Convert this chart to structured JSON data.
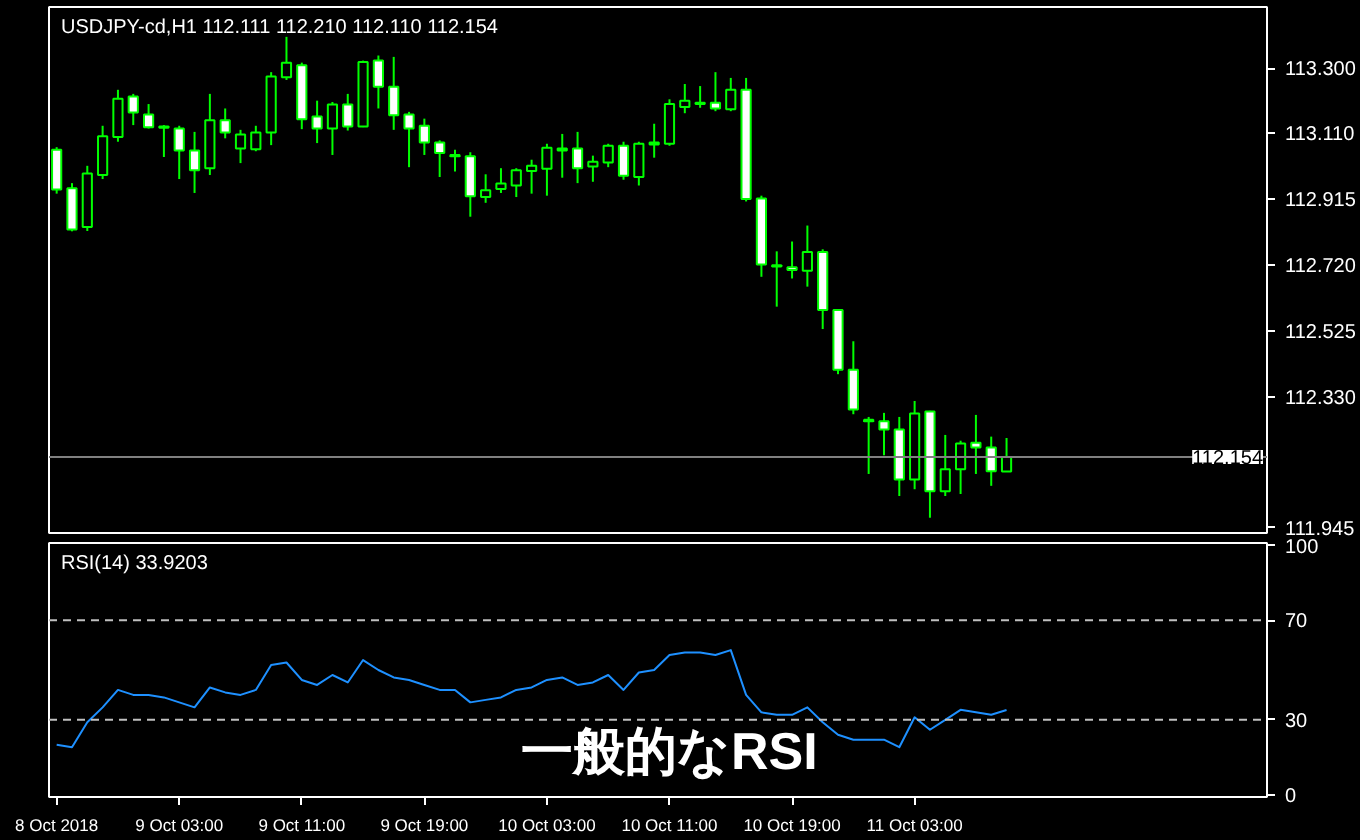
{
  "chart_data": [
    {
      "type": "candlestick",
      "title": "USDJPY-cd,H1  112.111 112.210 112.110 112.154",
      "x": [
        "2018-10-08T19:00",
        "2018-10-08T20:00",
        "2018-10-08T21:00",
        "2018-10-08T22:00",
        "2018-10-08T23:00",
        "2018-10-09T00:00",
        "2018-10-09T01:00",
        "2018-10-09T02:00",
        "2018-10-09T03:00",
        "2018-10-09T04:00",
        "2018-10-09T05:00",
        "2018-10-09T06:00",
        "2018-10-09T07:00",
        "2018-10-09T08:00",
        "2018-10-09T09:00",
        "2018-10-09T10:00",
        "2018-10-09T11:00",
        "2018-10-09T12:00",
        "2018-10-09T13:00",
        "2018-10-09T14:00",
        "2018-10-09T15:00",
        "2018-10-09T16:00",
        "2018-10-09T17:00",
        "2018-10-09T18:00",
        "2018-10-09T19:00",
        "2018-10-09T20:00",
        "2018-10-09T21:00",
        "2018-10-09T22:00",
        "2018-10-09T23:00",
        "2018-10-10T00:00",
        "2018-10-10T01:00",
        "2018-10-10T02:00",
        "2018-10-10T03:00",
        "2018-10-10T04:00",
        "2018-10-10T05:00",
        "2018-10-10T06:00",
        "2018-10-10T07:00",
        "2018-10-10T08:00",
        "2018-10-10T09:00",
        "2018-10-10T10:00",
        "2018-10-10T11:00",
        "2018-10-10T12:00",
        "2018-10-10T13:00",
        "2018-10-10T14:00",
        "2018-10-10T15:00",
        "2018-10-10T16:00",
        "2018-10-10T17:00",
        "2018-10-10T18:00",
        "2018-10-10T19:00",
        "2018-10-10T20:00",
        "2018-10-10T21:00",
        "2018-10-10T22:00",
        "2018-10-10T23:00",
        "2018-10-11T00:00",
        "2018-10-11T01:00",
        "2018-10-11T02:00",
        "2018-10-11T03:00",
        "2018-10-11T04:00",
        "2018-10-11T05:00",
        "2018-10-11T06:00",
        "2018-10-11T07:00",
        "2018-10-11T08:00",
        "2018-10-11T09:00"
      ],
      "ohlc": [
        [
          113.059,
          113.067,
          112.93,
          112.942
        ],
        [
          112.946,
          112.961,
          112.819,
          112.824
        ],
        [
          112.832,
          113.012,
          112.82,
          112.989
        ],
        [
          112.985,
          113.13,
          112.973,
          113.099
        ],
        [
          113.097,
          113.236,
          113.083,
          113.21
        ],
        [
          113.216,
          113.224,
          113.132,
          113.169
        ],
        [
          113.163,
          113.194,
          113.122,
          113.126
        ],
        [
          113.128,
          113.132,
          113.038,
          113.124
        ],
        [
          113.122,
          113.13,
          112.973,
          113.057
        ],
        [
          113.057,
          113.112,
          112.932,
          112.999
        ],
        [
          113.005,
          113.224,
          112.985,
          113.146
        ],
        [
          113.146,
          113.181,
          113.093,
          113.11
        ],
        [
          113.063,
          113.118,
          113.02,
          113.104
        ],
        [
          113.061,
          113.13,
          113.055,
          113.11
        ],
        [
          113.11,
          113.288,
          113.073,
          113.275
        ],
        [
          113.273,
          113.392,
          113.265,
          113.316
        ],
        [
          113.308,
          113.316,
          113.12,
          113.149
        ],
        [
          113.157,
          113.204,
          113.079,
          113.122
        ],
        [
          113.122,
          113.2,
          113.044,
          113.193
        ],
        [
          113.193,
          113.224,
          113.116,
          113.128
        ],
        [
          113.128,
          113.322,
          113.126,
          113.318
        ],
        [
          113.322,
          113.337,
          113.181,
          113.245
        ],
        [
          113.245,
          113.333,
          113.118,
          113.161
        ],
        [
          113.163,
          113.171,
          113.008,
          113.122
        ],
        [
          113.13,
          113.151,
          113.044,
          113.081
        ],
        [
          113.081,
          113.087,
          112.979,
          113.05
        ],
        [
          113.044,
          113.059,
          112.995,
          113.04
        ],
        [
          113.04,
          113.052,
          112.862,
          112.922
        ],
        [
          112.92,
          112.987,
          112.903,
          112.94
        ],
        [
          112.944,
          113.005,
          112.932,
          112.96
        ],
        [
          112.954,
          113.005,
          112.92,
          112.999
        ],
        [
          112.997,
          113.03,
          112.93,
          113.012
        ],
        [
          113.003,
          113.077,
          112.924,
          113.065
        ],
        [
          113.057,
          113.106,
          112.977,
          113.063
        ],
        [
          113.063,
          113.112,
          112.961,
          113.005
        ],
        [
          113.01,
          113.042,
          112.965,
          113.024
        ],
        [
          113.022,
          113.077,
          113.008,
          113.071
        ],
        [
          113.071,
          113.083,
          112.971,
          112.983
        ],
        [
          112.979,
          113.083,
          112.954,
          113.077
        ],
        [
          113.075,
          113.136,
          113.036,
          113.081
        ],
        [
          113.077,
          113.208,
          113.071,
          113.194
        ],
        [
          113.185,
          113.253,
          113.167,
          113.204
        ],
        [
          113.194,
          113.247,
          113.183,
          113.198
        ],
        [
          113.198,
          113.288,
          113.173,
          113.181
        ],
        [
          113.179,
          113.271,
          113.173,
          113.236
        ],
        [
          113.236,
          113.271,
          112.907,
          112.914
        ],
        [
          112.916,
          112.924,
          112.685,
          112.721
        ],
        [
          112.719,
          112.76,
          112.597,
          112.715
        ],
        [
          112.713,
          112.789,
          112.68,
          112.705
        ],
        [
          112.703,
          112.836,
          112.656,
          112.758
        ],
        [
          112.758,
          112.766,
          112.531,
          112.587
        ],
        [
          112.587,
          112.589,
          112.398,
          112.411
        ],
        [
          112.411,
          112.495,
          112.28,
          112.294
        ],
        [
          112.264,
          112.272,
          112.104,
          112.259
        ],
        [
          112.259,
          112.284,
          112.159,
          112.235
        ],
        [
          112.235,
          112.272,
          112.039,
          112.088
        ],
        [
          112.088,
          112.319,
          112.059,
          112.282
        ],
        [
          112.288,
          112.29,
          111.975,
          112.053
        ],
        [
          112.053,
          112.219,
          112.039,
          112.118
        ],
        [
          112.118,
          112.202,
          112.045,
          112.194
        ],
        [
          112.196,
          112.278,
          112.104,
          112.182
        ],
        [
          112.182,
          112.214,
          112.069,
          112.112
        ],
        [
          112.111,
          112.21,
          112.11,
          112.154
        ]
      ],
      "xlim": [
        "2018-10-08T18:30",
        "2018-10-12T02:00"
      ],
      "ylim": [
        111.93,
        113.48
      ],
      "yticks": [
        {
          "value": 113.3,
          "label": "113.300"
        },
        {
          "value": 113.11,
          "label": "113.110"
        },
        112.915,
        {
          "value": 112.72,
          "label": "112.720"
        },
        112.525,
        {
          "value": 112.33,
          "label": "112.330"
        },
        111.945
      ],
      "tick_labels": "y",
      "ref_lines": [
        {
          "axis": "y",
          "value": 112.154,
          "label": "112.154",
          "color": "#808080"
        }
      ]
    },
    {
      "type": "line",
      "title": "RSI(14) 33.9203",
      "x": [
        "2018-10-08T19:00",
        "2018-10-08T20:00",
        "2018-10-08T21:00",
        "2018-10-08T22:00",
        "2018-10-08T23:00",
        "2018-10-09T00:00",
        "2018-10-09T01:00",
        "2018-10-09T02:00",
        "2018-10-09T03:00",
        "2018-10-09T04:00",
        "2018-10-09T05:00",
        "2018-10-09T06:00",
        "2018-10-09T07:00",
        "2018-10-09T08:00",
        "2018-10-09T09:00",
        "2018-10-09T10:00",
        "2018-10-09T11:00",
        "2018-10-09T12:00",
        "2018-10-09T13:00",
        "2018-10-09T14:00",
        "2018-10-09T15:00",
        "2018-10-09T16:00",
        "2018-10-09T17:00",
        "2018-10-09T18:00",
        "2018-10-09T19:00",
        "2018-10-09T20:00",
        "2018-10-09T21:00",
        "2018-10-09T22:00",
        "2018-10-09T23:00",
        "2018-10-10T00:00",
        "2018-10-10T01:00",
        "2018-10-10T02:00",
        "2018-10-10T03:00",
        "2018-10-10T04:00",
        "2018-10-10T05:00",
        "2018-10-10T06:00",
        "2018-10-10T07:00",
        "2018-10-10T08:00",
        "2018-10-10T09:00",
        "2018-10-10T10:00",
        "2018-10-10T11:00",
        "2018-10-10T12:00",
        "2018-10-10T13:00",
        "2018-10-10T14:00",
        "2018-10-10T15:00",
        "2018-10-10T16:00",
        "2018-10-10T17:00",
        "2018-10-10T18:00",
        "2018-10-10T19:00",
        "2018-10-10T20:00",
        "2018-10-10T21:00",
        "2018-10-10T22:00",
        "2018-10-10T23:00",
        "2018-10-11T00:00",
        "2018-10-11T01:00",
        "2018-10-11T02:00",
        "2018-10-11T03:00",
        "2018-10-11T04:00",
        "2018-10-11T05:00",
        "2018-10-11T06:00",
        "2018-10-11T07:00",
        "2018-10-11T08:00",
        "2018-10-11T09:00"
      ],
      "series": [
        {
          "color": "#1e90ff",
          "values": [
            20,
            19,
            29,
            35,
            42,
            40,
            40,
            39,
            37,
            35,
            43,
            41,
            40,
            42,
            52,
            53,
            46,
            44,
            48,
            45,
            54,
            50,
            47,
            46,
            44,
            42,
            42,
            37,
            38,
            39,
            42,
            43,
            46,
            47,
            44,
            45,
            48,
            42,
            49,
            50,
            56,
            57,
            57,
            56,
            58,
            40,
            33,
            32,
            32,
            35,
            29,
            24,
            22,
            22,
            22,
            19,
            31,
            26,
            30,
            34,
            33,
            32,
            33.9203
          ]
        }
      ],
      "xlim": [
        "2018-10-08T18:30",
        "2018-10-12T02:00"
      ],
      "xticks": [
        {
          "value": "2018-10-08T19:00",
          "label": "8 Oct 2018"
        },
        {
          "value": "2018-10-09T03:00",
          "label": "9 Oct 03:00"
        },
        {
          "value": "2018-10-09T11:00",
          "label": "9 Oct 11:00"
        },
        {
          "value": "2018-10-09T19:00",
          "label": "9 Oct 19:00"
        },
        {
          "value": "2018-10-10T03:00",
          "label": "10 Oct 03:00"
        },
        {
          "value": "2018-10-10T11:00",
          "label": "10 Oct 11:00"
        },
        {
          "value": "2018-10-10T19:00",
          "label": "10 Oct 19:00"
        },
        {
          "value": "2018-10-11T03:00",
          "label": "11 Oct 03:00"
        }
      ],
      "ylim": [
        -1,
        101
      ],
      "yticks": [
        0,
        30,
        70,
        100
      ],
      "ref_lines": [
        {
          "axis": "y",
          "value": 30,
          "color": "#c0c0c0",
          "line_style": "dashed"
        },
        {
          "axis": "y",
          "value": 70,
          "color": "#c0c0c0",
          "line_style": "dashed"
        }
      ],
      "annotations": [
        "一般的なRSI"
      ]
    }
  ]
}
